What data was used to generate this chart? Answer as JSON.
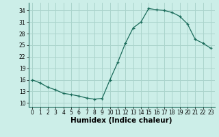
{
  "x": [
    0,
    1,
    2,
    3,
    4,
    5,
    6,
    7,
    8,
    9,
    10,
    11,
    12,
    13,
    14,
    15,
    16,
    17,
    18,
    19,
    20,
    21,
    22,
    23
  ],
  "y": [
    16.0,
    15.2,
    14.1,
    13.4,
    12.5,
    12.2,
    11.8,
    11.3,
    11.0,
    11.2,
    16.0,
    20.5,
    25.5,
    29.5,
    31.0,
    34.5,
    34.2,
    34.0,
    33.5,
    32.5,
    30.5,
    26.5,
    25.5,
    24.2
  ],
  "xlabel": "Humidex (Indice chaleur)",
  "xlim": [
    -0.5,
    23.5
  ],
  "ylim": [
    9,
    36
  ],
  "yticks": [
    10,
    13,
    16,
    19,
    22,
    25,
    28,
    31,
    34
  ],
  "xticks": [
    0,
    1,
    2,
    3,
    4,
    5,
    6,
    7,
    8,
    9,
    10,
    11,
    12,
    13,
    14,
    15,
    16,
    17,
    18,
    19,
    20,
    21,
    22,
    23
  ],
  "line_color": "#1a6b5a",
  "marker": "+",
  "bg_color": "#cceee8",
  "grid_color": "#aad4cc",
  "tick_label_fontsize": 5.5,
  "xlabel_fontsize": 7.5,
  "linewidth": 0.9,
  "markersize": 3.5,
  "markeredgewidth": 0.9
}
